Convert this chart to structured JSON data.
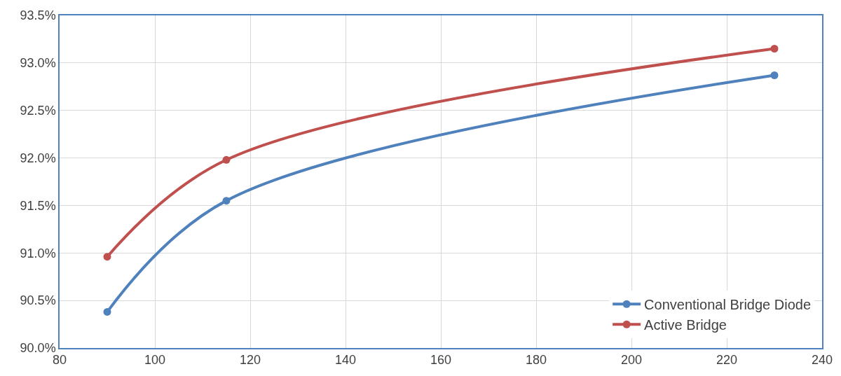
{
  "chart_data": {
    "type": "line",
    "x": [
      90,
      115,
      230
    ],
    "series": [
      {
        "name": "Conventional Bridge Diode",
        "color": "#4f81bd",
        "values": [
          90.38,
          91.55,
          92.87
        ]
      },
      {
        "name": "Active Bridge",
        "color": "#c0504d",
        "values": [
          90.96,
          91.98,
          93.15
        ]
      }
    ],
    "xlim": [
      80,
      240
    ],
    "xticks": [
      80,
      100,
      120,
      140,
      160,
      180,
      200,
      220,
      240
    ],
    "ylim": [
      90,
      93.5
    ],
    "yticks": [
      {
        "value": 90,
        "label": "90.0%"
      },
      {
        "value": 90.5,
        "label": "90.5%"
      },
      {
        "value": 91,
        "label": "91.0%"
      },
      {
        "value": 91.5,
        "label": "91.5%"
      },
      {
        "value": 92,
        "label": "92.0%"
      },
      {
        "value": 92.5,
        "label": "92.5%"
      },
      {
        "value": 93,
        "label": "93.0%"
      },
      {
        "value": 93.5,
        "label": "93.5%"
      }
    ],
    "grid": true,
    "legend": "bottom right",
    "marker": "circle",
    "line_style": "solid"
  }
}
